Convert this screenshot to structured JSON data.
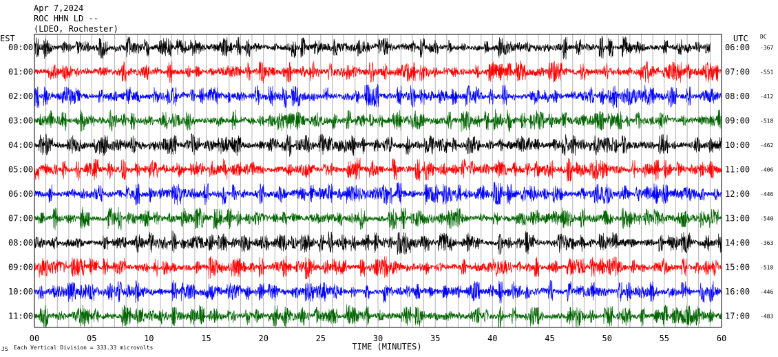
{
  "header": {
    "date": "Apr 7,2024",
    "station": "ROC HHN LD --",
    "location": "(LDEO, Rochester)",
    "left_tz": "EST",
    "right_tz": "UTC",
    "dc_header": "DC"
  },
  "footer": {
    "scale_note": "Each Vertical Division =  333.33 microvolts",
    "corner_mark": "JS"
  },
  "chart_data": {
    "type": "line",
    "title": "Apr 7,2024",
    "xlabel": "TIME (MINUTES)",
    "ylabel": "",
    "xlim": [
      0,
      60
    ],
    "x_ticks": [
      "00",
      "05",
      "10",
      "15",
      "20",
      "25",
      "30",
      "35",
      "40",
      "45",
      "50",
      "55",
      "60"
    ],
    "x_tick_values": [
      0,
      5,
      10,
      15,
      20,
      25,
      30,
      35,
      40,
      45,
      50,
      55,
      60
    ],
    "grid": "vertical lines every minute",
    "trace_colors": [
      "#000000",
      "#ff0000",
      "#0000ff",
      "#006400"
    ],
    "rows": [
      {
        "est": "00:00",
        "utc": "06:00",
        "dc": "-367",
        "end_minute": 59.0
      },
      {
        "est": "01:00",
        "utc": "07:00",
        "dc": "-551",
        "end_minute": 60
      },
      {
        "est": "02:00",
        "utc": "08:00",
        "dc": "-412",
        "end_minute": 60
      },
      {
        "est": "03:00",
        "utc": "09:00",
        "dc": "-518",
        "end_minute": 60
      },
      {
        "est": "04:00",
        "utc": "10:00",
        "dc": "-462",
        "end_minute": 60
      },
      {
        "est": "05:00",
        "utc": "11:00",
        "dc": "-406",
        "end_minute": 60
      },
      {
        "est": "06:00",
        "utc": "12:00",
        "dc": "-446",
        "end_minute": 60
      },
      {
        "est": "07:00",
        "utc": "13:00",
        "dc": "-540",
        "end_minute": 60
      },
      {
        "est": "08:00",
        "utc": "14:00",
        "dc": "-363",
        "end_minute": 60
      },
      {
        "est": "09:00",
        "utc": "15:00",
        "dc": "-518",
        "end_minute": 60
      },
      {
        "est": "10:00",
        "utc": "16:00",
        "dc": "-446",
        "end_minute": 60
      },
      {
        "est": "11:00",
        "utc": "17:00",
        "dc": "-483",
        "end_minute": 60
      }
    ]
  }
}
